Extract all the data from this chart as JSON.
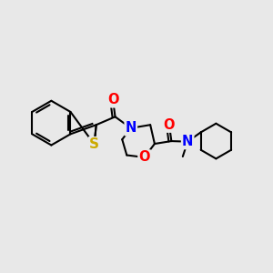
{
  "bg_color": "#e8e8e8",
  "bond_color": "#000000",
  "bond_width": 1.5,
  "atom_colors": {
    "O": "#ff0000",
    "N": "#0000ff",
    "S": "#ccaa00",
    "C": "#000000"
  },
  "font_size": 9.5,
  "figsize": [
    3.0,
    3.0
  ],
  "dpi": 100
}
